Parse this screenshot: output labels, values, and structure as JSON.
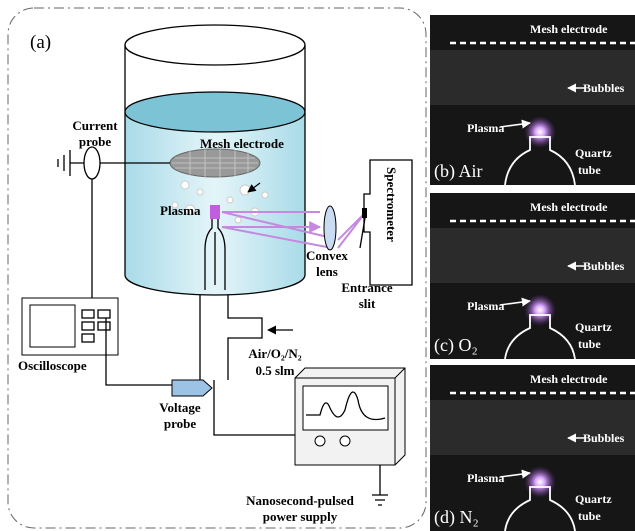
{
  "panel_a": {
    "label": "(a)",
    "current_probe": [
      "Current",
      "probe"
    ],
    "mesh_electrode": "Mesh electrode",
    "plasma": "Plasma",
    "spectrometer": "Spectrometer",
    "convex_lens": [
      "Convex",
      "lens"
    ],
    "entrance_slit": [
      "Entrance",
      "slit"
    ],
    "oscilloscope": "Oscilloscope",
    "gas": [
      "Air/O₂/N₂",
      "0.5 slm"
    ],
    "voltage_probe": [
      "Voltage",
      "probe"
    ],
    "power_supply": [
      "Nanosecond-pulsed",
      "power supply"
    ]
  },
  "photos": [
    {
      "label": "(b) Air",
      "mesh_electrode": "Mesh electrode",
      "bubbles": "Bubbles",
      "plasma": "Plasma",
      "quartz_tube": [
        "Quartz",
        "tube"
      ]
    },
    {
      "label": "(c) O₂",
      "mesh_electrode": "Mesh electrode",
      "bubbles": "Bubbles",
      "plasma": "Plasma",
      "quartz_tube": [
        "Quartz",
        "tube"
      ]
    },
    {
      "label": "(d) N₂",
      "mesh_electrode": "Mesh electrode",
      "bubbles": "Bubbles",
      "plasma": "Plasma",
      "quartz_tube": [
        "Quartz",
        "tube"
      ]
    }
  ]
}
